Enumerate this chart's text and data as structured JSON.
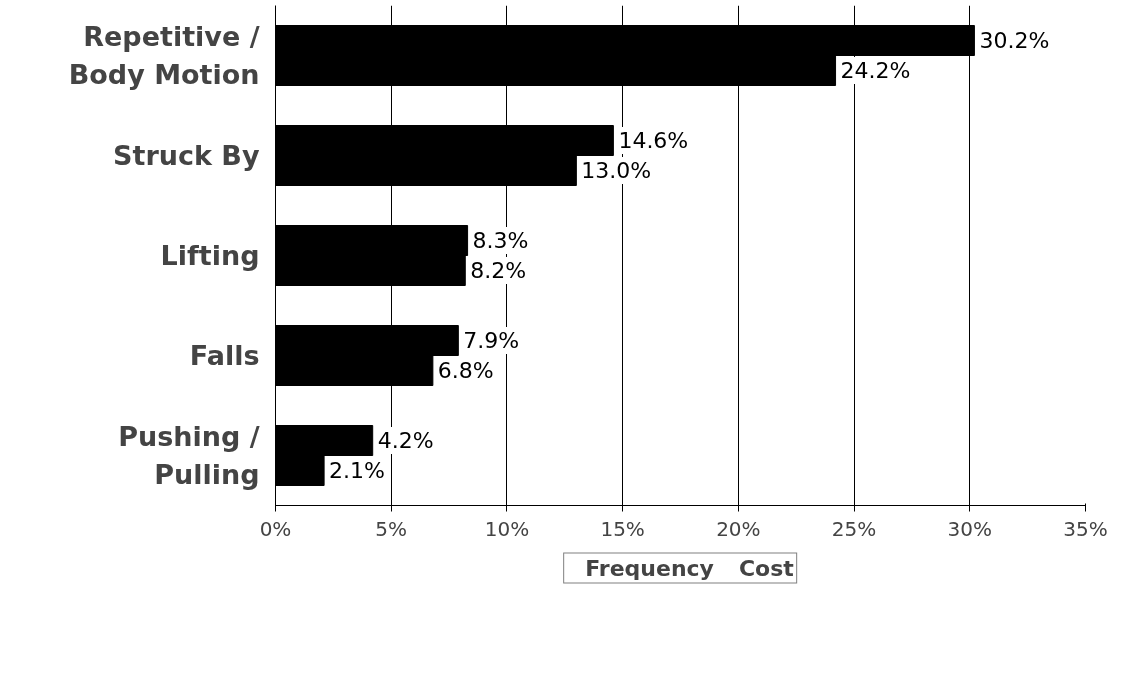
{
  "chart_data": {
    "type": "bar",
    "orientation": "horizontal",
    "categories": [
      "Repetitive /\nBody Motion",
      "Struck By",
      "Lifting",
      "Falls",
      "Pushing /\nPulling"
    ],
    "series": [
      {
        "name": "Frequency",
        "color": "#000000",
        "values": [
          30.2,
          14.6,
          8.3,
          7.9,
          4.2
        ],
        "value_labels": [
          "30.2%",
          "14.6%",
          "8.3%",
          "7.9%",
          "4.2%"
        ]
      },
      {
        "name": "Cost",
        "color": "#000000",
        "values": [
          24.2,
          13.0,
          8.2,
          6.8,
          2.1
        ],
        "value_labels": [
          "24.2%",
          "13.0%",
          "8.2%",
          "6.8%",
          "2.1%"
        ]
      }
    ],
    "xlim": [
      0,
      35
    ],
    "xticks": [
      {
        "value": 0,
        "label": "0%"
      },
      {
        "value": 5,
        "label": "5%"
      },
      {
        "value": 10,
        "label": "10%"
      },
      {
        "value": 15,
        "label": "15%"
      },
      {
        "value": 20,
        "label": "20%"
      },
      {
        "value": 25,
        "label": "25%"
      },
      {
        "value": 30,
        "label": "30%"
      },
      {
        "value": 35,
        "label": "35%"
      }
    ],
    "grid": "x",
    "legend": "bottom"
  }
}
